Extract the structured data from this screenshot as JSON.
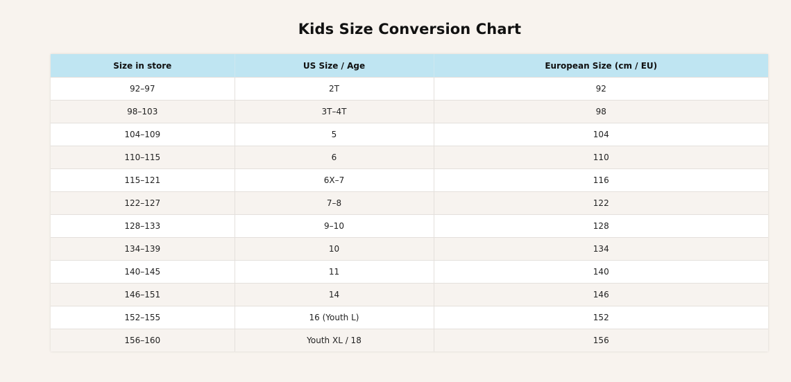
{
  "page": {
    "title": "Kids Size Conversion Chart"
  },
  "table": {
    "headers": [
      "Size in store",
      "US Size / Age",
      "European Size (cm / EU)"
    ],
    "rows": [
      [
        "92–97",
        "2T",
        "92"
      ],
      [
        "98–103",
        "3T–4T",
        "98"
      ],
      [
        "104–109",
        "5",
        "104"
      ],
      [
        "110–115",
        "6",
        "110"
      ],
      [
        "115–121",
        "6X–7",
        "116"
      ],
      [
        "122–127",
        "7–8",
        "122"
      ],
      [
        "128–133",
        "9–10",
        "128"
      ],
      [
        "134–139",
        "10",
        "134"
      ],
      [
        "140–145",
        "11",
        "140"
      ],
      [
        "146–151",
        "14",
        "146"
      ],
      [
        "152–155",
        "16 (Youth L)",
        "152"
      ],
      [
        "156–160",
        "Youth XL / 18",
        "156"
      ]
    ]
  },
  "colors": {
    "background": "#f8f3ee",
    "header_bg": "#bfe5f2",
    "row_alt_bg": "#f7f3ef"
  }
}
